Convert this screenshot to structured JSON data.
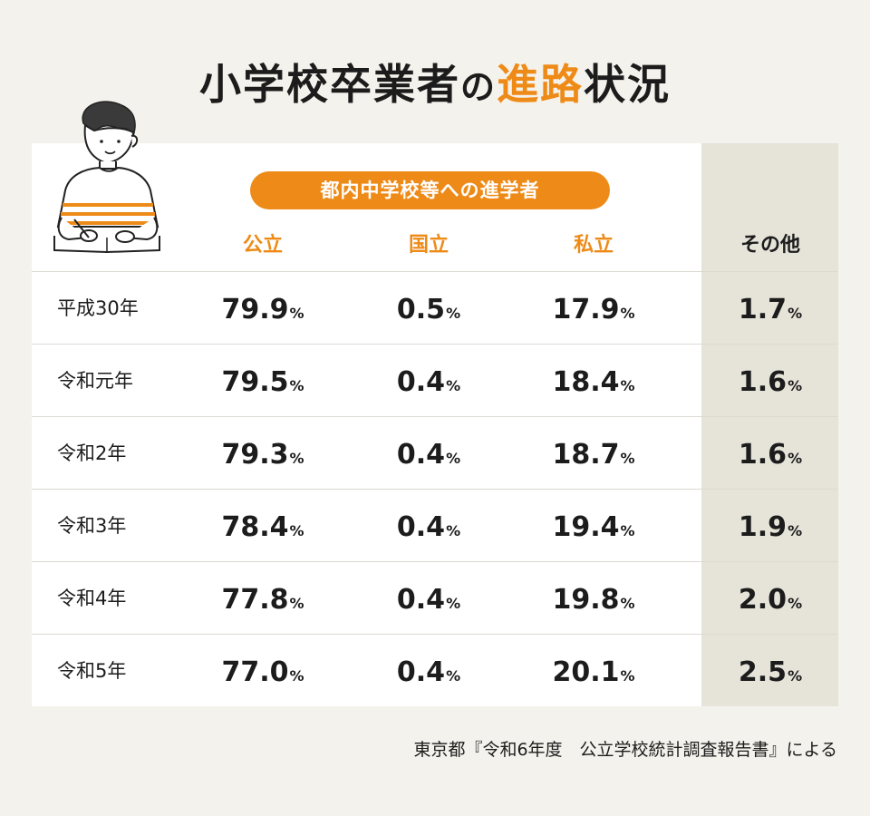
{
  "title": {
    "part1": "小学校卒業者",
    "part2": "の",
    "part3": "進路",
    "part4": "状況"
  },
  "table": {
    "group_label": "都内中学校等への進学者",
    "columns": [
      "公立",
      "国立",
      "私立",
      "その他"
    ],
    "rows": [
      {
        "year": "平成30年",
        "values": [
          "79.9",
          "0.5",
          "17.9",
          "1.7"
        ]
      },
      {
        "year": "令和元年",
        "values": [
          "79.5",
          "0.4",
          "18.4",
          "1.6"
        ]
      },
      {
        "year": "令和2年",
        "values": [
          "79.3",
          "0.4",
          "18.7",
          "1.6"
        ]
      },
      {
        "year": "令和3年",
        "values": [
          "78.4",
          "0.4",
          "19.4",
          "1.9"
        ]
      },
      {
        "year": "令和4年",
        "values": [
          "77.8",
          "0.4",
          "19.8",
          "2.0"
        ]
      },
      {
        "year": "令和5年",
        "values": [
          "77.0",
          "0.4",
          "20.1",
          "2.5"
        ]
      }
    ],
    "unit": "%"
  },
  "chart_data": {
    "type": "table",
    "title": "小学校卒業者の進路状況",
    "group": "都内中学校等への進学者",
    "columns": [
      "公立",
      "国立",
      "私立",
      "その他"
    ],
    "categories": [
      "平成30年",
      "令和元年",
      "令和2年",
      "令和3年",
      "令和4年",
      "令和5年"
    ],
    "series": [
      {
        "name": "公立",
        "values": [
          79.9,
          79.5,
          79.3,
          78.4,
          77.8,
          77.0
        ]
      },
      {
        "name": "国立",
        "values": [
          0.5,
          0.4,
          0.4,
          0.4,
          0.4,
          0.4
        ]
      },
      {
        "name": "私立",
        "values": [
          17.9,
          18.4,
          18.7,
          19.4,
          19.8,
          20.1
        ]
      },
      {
        "name": "その他",
        "values": [
          1.7,
          1.6,
          1.6,
          1.9,
          2.0,
          2.5
        ]
      }
    ],
    "unit": "%"
  },
  "source": "東京都『令和6年度　公立学校統計調査報告書』による",
  "colors": {
    "accent": "#ee8b18",
    "background": "#f4f2ec",
    "other_column": "#e6e3d9",
    "text": "#1c1c1c"
  },
  "icons": {
    "illustration": "student-studying-illustration"
  }
}
